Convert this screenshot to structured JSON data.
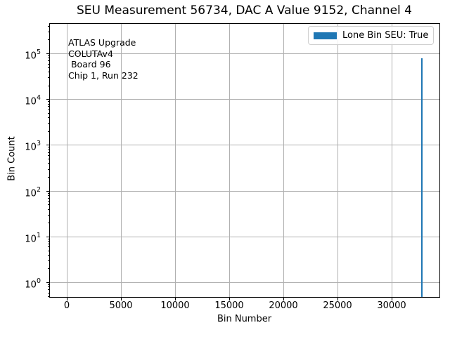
{
  "chart_data": {
    "type": "bar",
    "title": "SEU Measurement 56734, DAC A Value 9152, Channel 4",
    "xlabel": "Bin Number",
    "ylabel": "Bin Count",
    "yscale": "log",
    "grid": true,
    "legend": {
      "label": "Lone Bin SEU: True",
      "position": "upper right",
      "swatch_color": "#1f77b4"
    },
    "annotation_lines": [
      "ATLAS Upgrade",
      "COLUTAv4",
      " Board 96",
      "Chip 1, Run 232"
    ],
    "x_ticks": [
      0,
      5000,
      10000,
      15000,
      20000,
      25000,
      30000
    ],
    "y_tick_exponents": [
      0,
      1,
      2,
      3,
      4,
      5
    ],
    "x_range": [
      -1638,
      34406
    ],
    "y_log_range": [
      -0.32,
      5.66
    ],
    "bars": [
      {
        "bin": 32767,
        "count": 77000
      }
    ],
    "bar_color": "#1f77b4",
    "grid_color": "#b0b0b0"
  }
}
